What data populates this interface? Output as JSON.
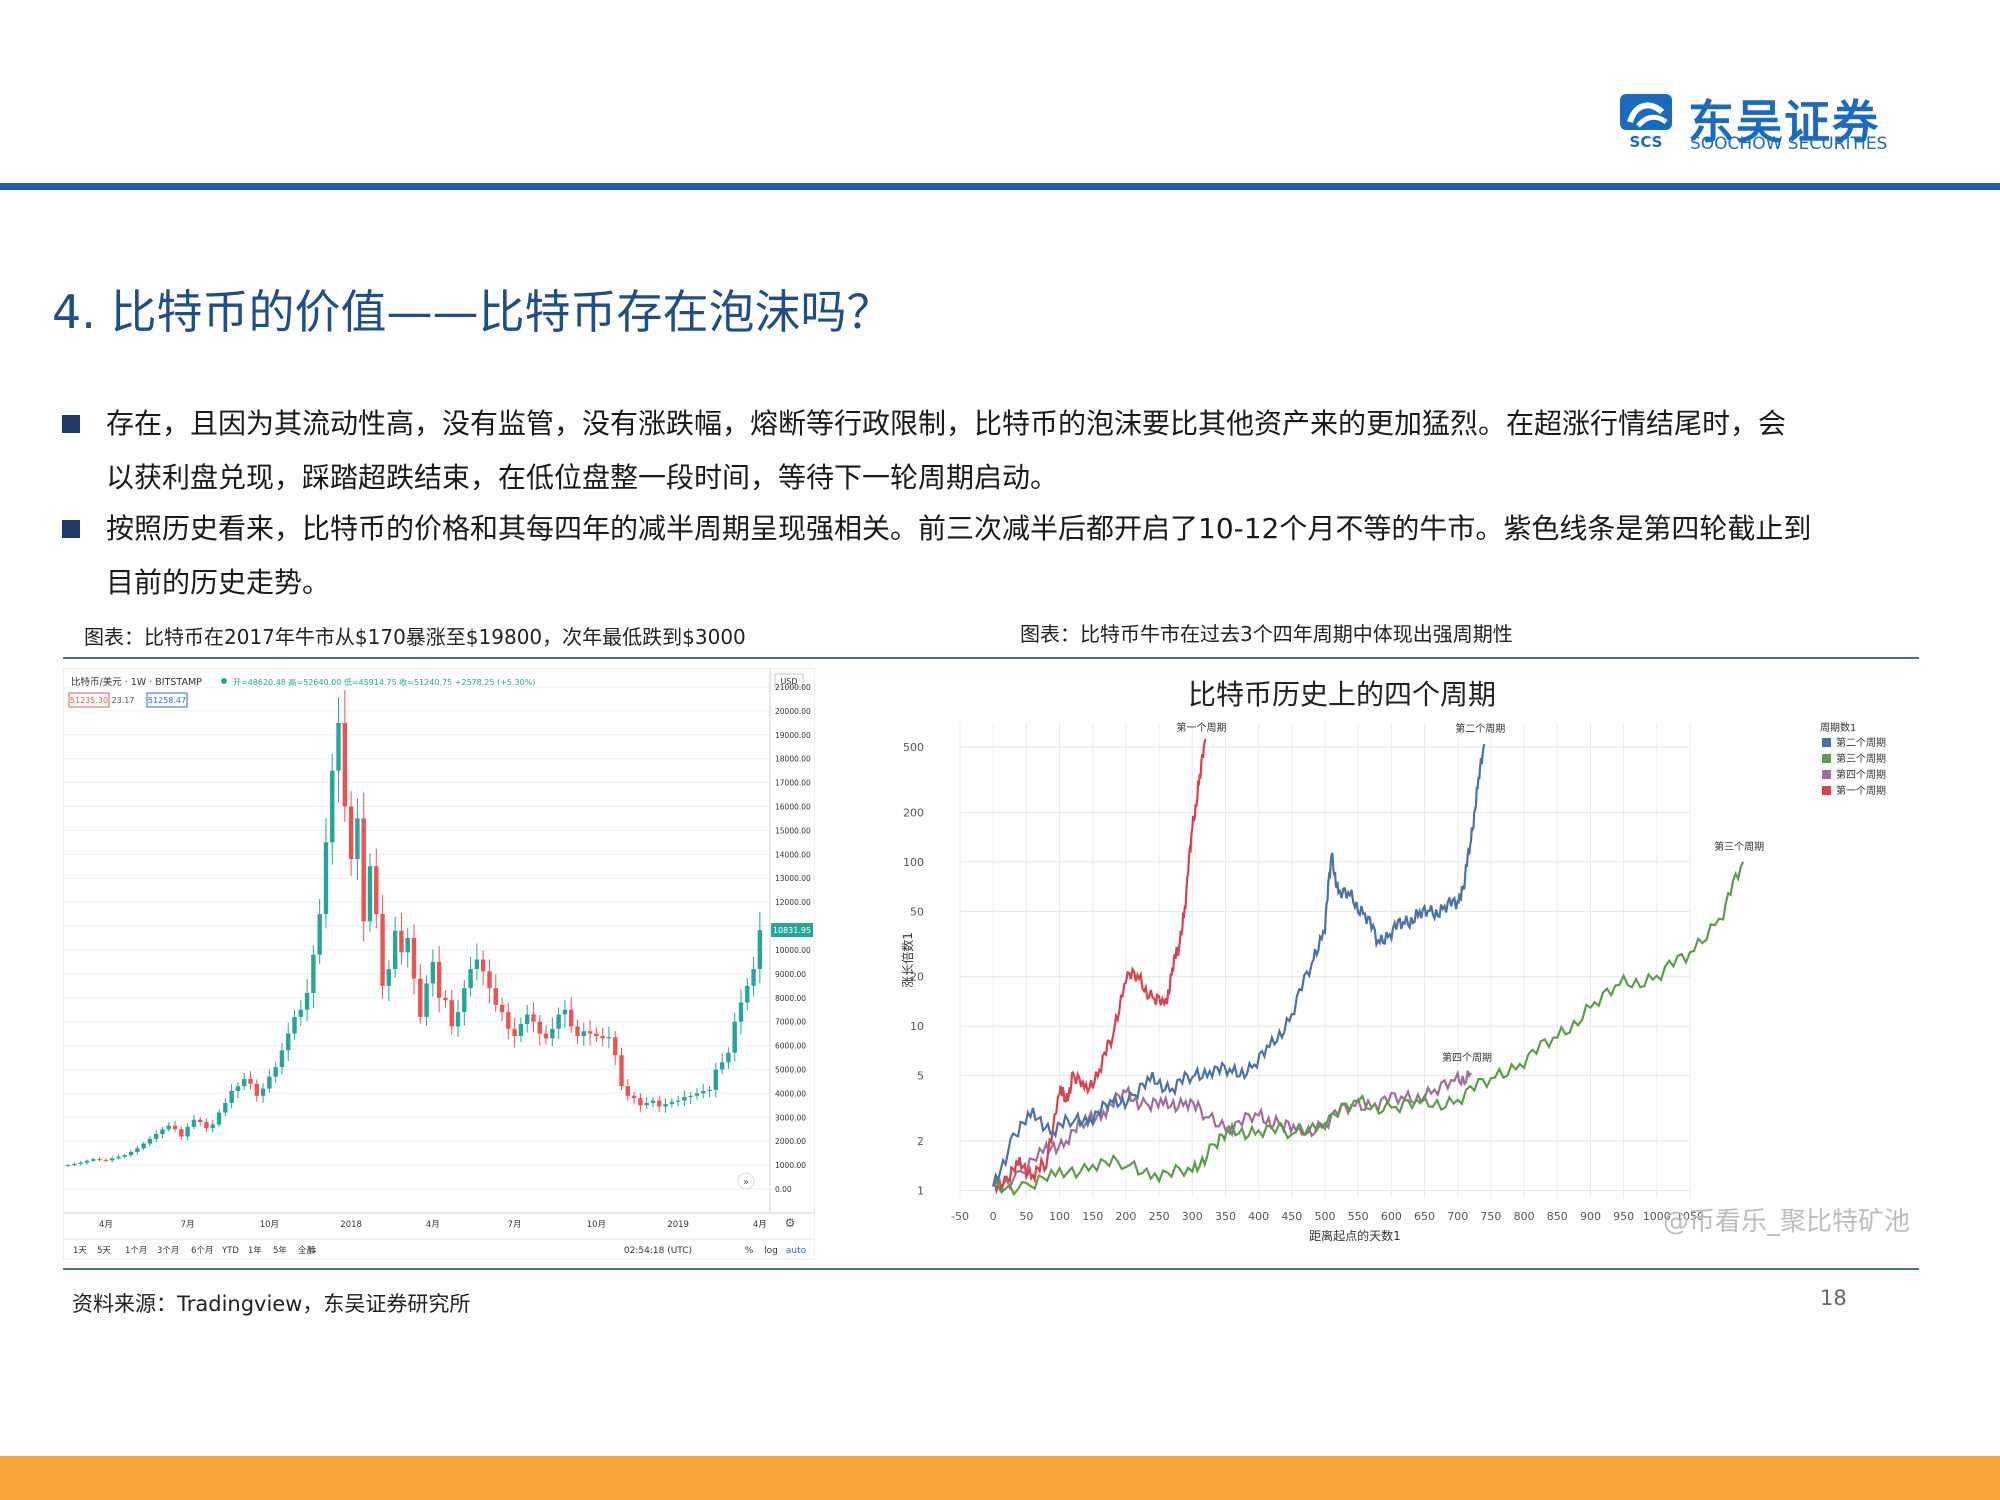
{
  "header": {
    "logo_cn": "东吴证券",
    "logo_en": "SOOCHOW SECURITIES",
    "logo_mark_text": "SCS"
  },
  "colors": {
    "accent_blue": "#1f5fa8",
    "bottom_bar": "#f6a43a",
    "title_blue": "#1f4e8c",
    "candle_up": "#26a69a",
    "candle_down": "#ef5350"
  },
  "page": {
    "title": "4. 比特币的价值——比特币存在泡沫吗？",
    "bullets": [
      {
        "lines": [
          "存在，且因为其流动性高，没有监管，没有涨跌幅，熔断等行政限制，比特币的泡沫要比其他资产来的更加猛烈。在超涨行情结尾时，会",
          "以获利盘兑现，踩踏超跌结束，在低位盘整一段时间，等待下一轮周期启动。"
        ]
      },
      {
        "lines": [
          "按照历史看来，比特币的价格和其每四年的减半周期呈现强相关。前三次减半后都开启了10-12个月不等的牛市。紫色线条是第四轮截止到",
          "目前的历史走势。"
        ]
      }
    ],
    "caption_left": "图表：比特币在2017年牛市从$170暴涨至$19800，次年最低跌到$3000",
    "caption_right": "图表：比特币牛市在过去3个四年周期中体现出强周期性",
    "source": "资料来源：Tradingview，东吴证券研究所",
    "page_number": "18"
  },
  "tradingview": {
    "symbol": "比特币/美元 · 1W · BITSTAMP",
    "ohlc": "开=48620.48  高=52640.00  低=45914.75  收=51240.75  +2578.25 (+5.30%)",
    "sell_price": "51235.30",
    "spread": "23.17",
    "buy_price": "51258.47",
    "currency": "USD",
    "last_price_tag": "10831.95",
    "time_readout": "02:54:18 (UTC)",
    "timeframes": [
      "1天",
      "5天",
      "1个月",
      "3个月",
      "6个月",
      "YTD",
      "1年",
      "5年",
      "全部"
    ],
    "scale_options": [
      "%",
      "log",
      "auto"
    ],
    "settings_icon": "gear-icon",
    "goto_icon": "chevrons-right-icon"
  },
  "chart_data": [
    {
      "type": "candlestick",
      "title": "",
      "x_tick_labels": [
        "4月",
        "7月",
        "10月",
        "2018",
        "4月",
        "7月",
        "10月",
        "2019",
        "4月"
      ],
      "y_tick_labels": [
        "21000.00",
        "20000.00",
        "19000.00",
        "18000.00",
        "17000.00",
        "16000.00",
        "15000.00",
        "14000.00",
        "13000.00",
        "12000.00",
        "11000.00",
        "10000.00",
        "9000.00",
        "8000.00",
        "7000.00",
        "6000.00",
        "5000.00",
        "4000.00",
        "3000.00",
        "2000.00",
        "1000.00",
        "0.00"
      ],
      "ylim": [
        0,
        21000
      ],
      "series_close": [
        1000,
        1050,
        1100,
        1180,
        1250,
        1220,
        1200,
        1280,
        1350,
        1420,
        1550,
        1700,
        1900,
        2100,
        2300,
        2500,
        2650,
        2500,
        2200,
        2600,
        2900,
        2800,
        2550,
        2700,
        3200,
        3600,
        4100,
        4300,
        4600,
        4400,
        3900,
        4200,
        4700,
        5100,
        5800,
        6500,
        7200,
        7500,
        8200,
        9800,
        11500,
        14500,
        17500,
        19500,
        16000,
        13800,
        15500,
        11200,
        13500,
        11500,
        8500,
        9200,
        10800,
        9900,
        10500,
        8800,
        7200,
        8600,
        9500,
        8000,
        7900,
        6800,
        7400,
        8400,
        9200,
        9600,
        9100,
        8400,
        7700,
        7400,
        6700,
        6400,
        6900,
        7300,
        7000,
        6500,
        6300,
        6700,
        7300,
        7500,
        6800,
        6400,
        6600,
        6500,
        6400,
        6300,
        6350,
        5600,
        4300,
        3900,
        3800,
        3500,
        3600,
        3700,
        3450,
        3550,
        3650,
        3700,
        3850,
        3900,
        4000,
        4100,
        4150,
        5000,
        5300,
        5700,
        7000,
        7800,
        8500,
        9200,
        10831.95
      ]
    },
    {
      "type": "line",
      "title": "比特币历史上的四个周期",
      "xlabel": "距离起点的天数1",
      "ylabel": "涨长倍数1",
      "y_scale": "log",
      "x_ticks": [
        -50,
        0,
        50,
        100,
        150,
        200,
        250,
        300,
        350,
        400,
        450,
        500,
        550,
        600,
        650,
        700,
        750,
        800,
        850,
        900,
        950,
        1000,
        1050
      ],
      "y_ticks": [
        1,
        2,
        5,
        10,
        20,
        50,
        100,
        200,
        500
      ],
      "legend_title": "周期数1",
      "legend_position": "top-right",
      "series": [
        {
          "name": "第二个周期",
          "color": "#4a72a8",
          "x": [
            0,
            30,
            60,
            90,
            120,
            150,
            180,
            210,
            240,
            270,
            300,
            330,
            360,
            390,
            420,
            450,
            480,
            500,
            510,
            520,
            540,
            560,
            580,
            600,
            620,
            640,
            660,
            680,
            700,
            710,
            720,
            730,
            740
          ],
          "y": [
            1,
            2.2,
            2.8,
            2.4,
            2.6,
            2.9,
            3.3,
            3.8,
            4.6,
            4.3,
            4.9,
            5.6,
            5.1,
            5.6,
            7.5,
            12,
            24,
            42,
            110,
            65,
            60,
            48,
            33,
            38,
            43,
            47,
            49,
            52,
            58,
            75,
            140,
            280,
            520
          ]
        },
        {
          "name": "第三个周期",
          "color": "#5a9e48",
          "x": [
            0,
            50,
            100,
            150,
            200,
            250,
            300,
            330,
            360,
            400,
            450,
            500,
            550,
            600,
            650,
            700,
            750,
            800,
            850,
            900,
            950,
            1000,
            1050,
            1100,
            1130
          ],
          "y": [
            1,
            1.1,
            1.2,
            1.5,
            1.4,
            1.3,
            1.25,
            1.9,
            2.2,
            2.4,
            2.2,
            2.7,
            3.4,
            3.2,
            3.3,
            3.6,
            4.8,
            6.3,
            8.5,
            13,
            18,
            20,
            28,
            50,
            100
          ]
        },
        {
          "name": "第四个周期",
          "color": "#a36ca0",
          "x": [
            0,
            40,
            80,
            110,
            140,
            170,
            200,
            230,
            260,
            290,
            320,
            360,
            400,
            430,
            460,
            500,
            540,
            580,
            620,
            660,
            700,
            720
          ],
          "y": [
            1,
            1.3,
            1.7,
            2.1,
            2.6,
            3.2,
            3.8,
            3.4,
            3.2,
            3.6,
            2.8,
            2.5,
            2.8,
            2.6,
            2.2,
            2.6,
            3.3,
            3.5,
            3.6,
            3.9,
            4.6,
            5.2
          ]
        },
        {
          "name": "第一个周期",
          "color": "#d8424e",
          "x": [
            0,
            20,
            40,
            60,
            80,
            100,
            110,
            120,
            140,
            160,
            180,
            200,
            220,
            240,
            260,
            270,
            280,
            290,
            300,
            310,
            320
          ],
          "y": [
            1,
            1.2,
            1.4,
            1.3,
            1.4,
            4.4,
            3.3,
            5.2,
            3.9,
            5.6,
            8.5,
            21,
            19,
            15,
            13,
            23,
            30,
            60,
            160,
            300,
            560
          ]
        }
      ],
      "annotations": [
        "第一个周期",
        "第二个周期",
        "第三个周期",
        "第四个周期"
      ]
    }
  ],
  "watermark": "@币看乐_聚比特矿池"
}
